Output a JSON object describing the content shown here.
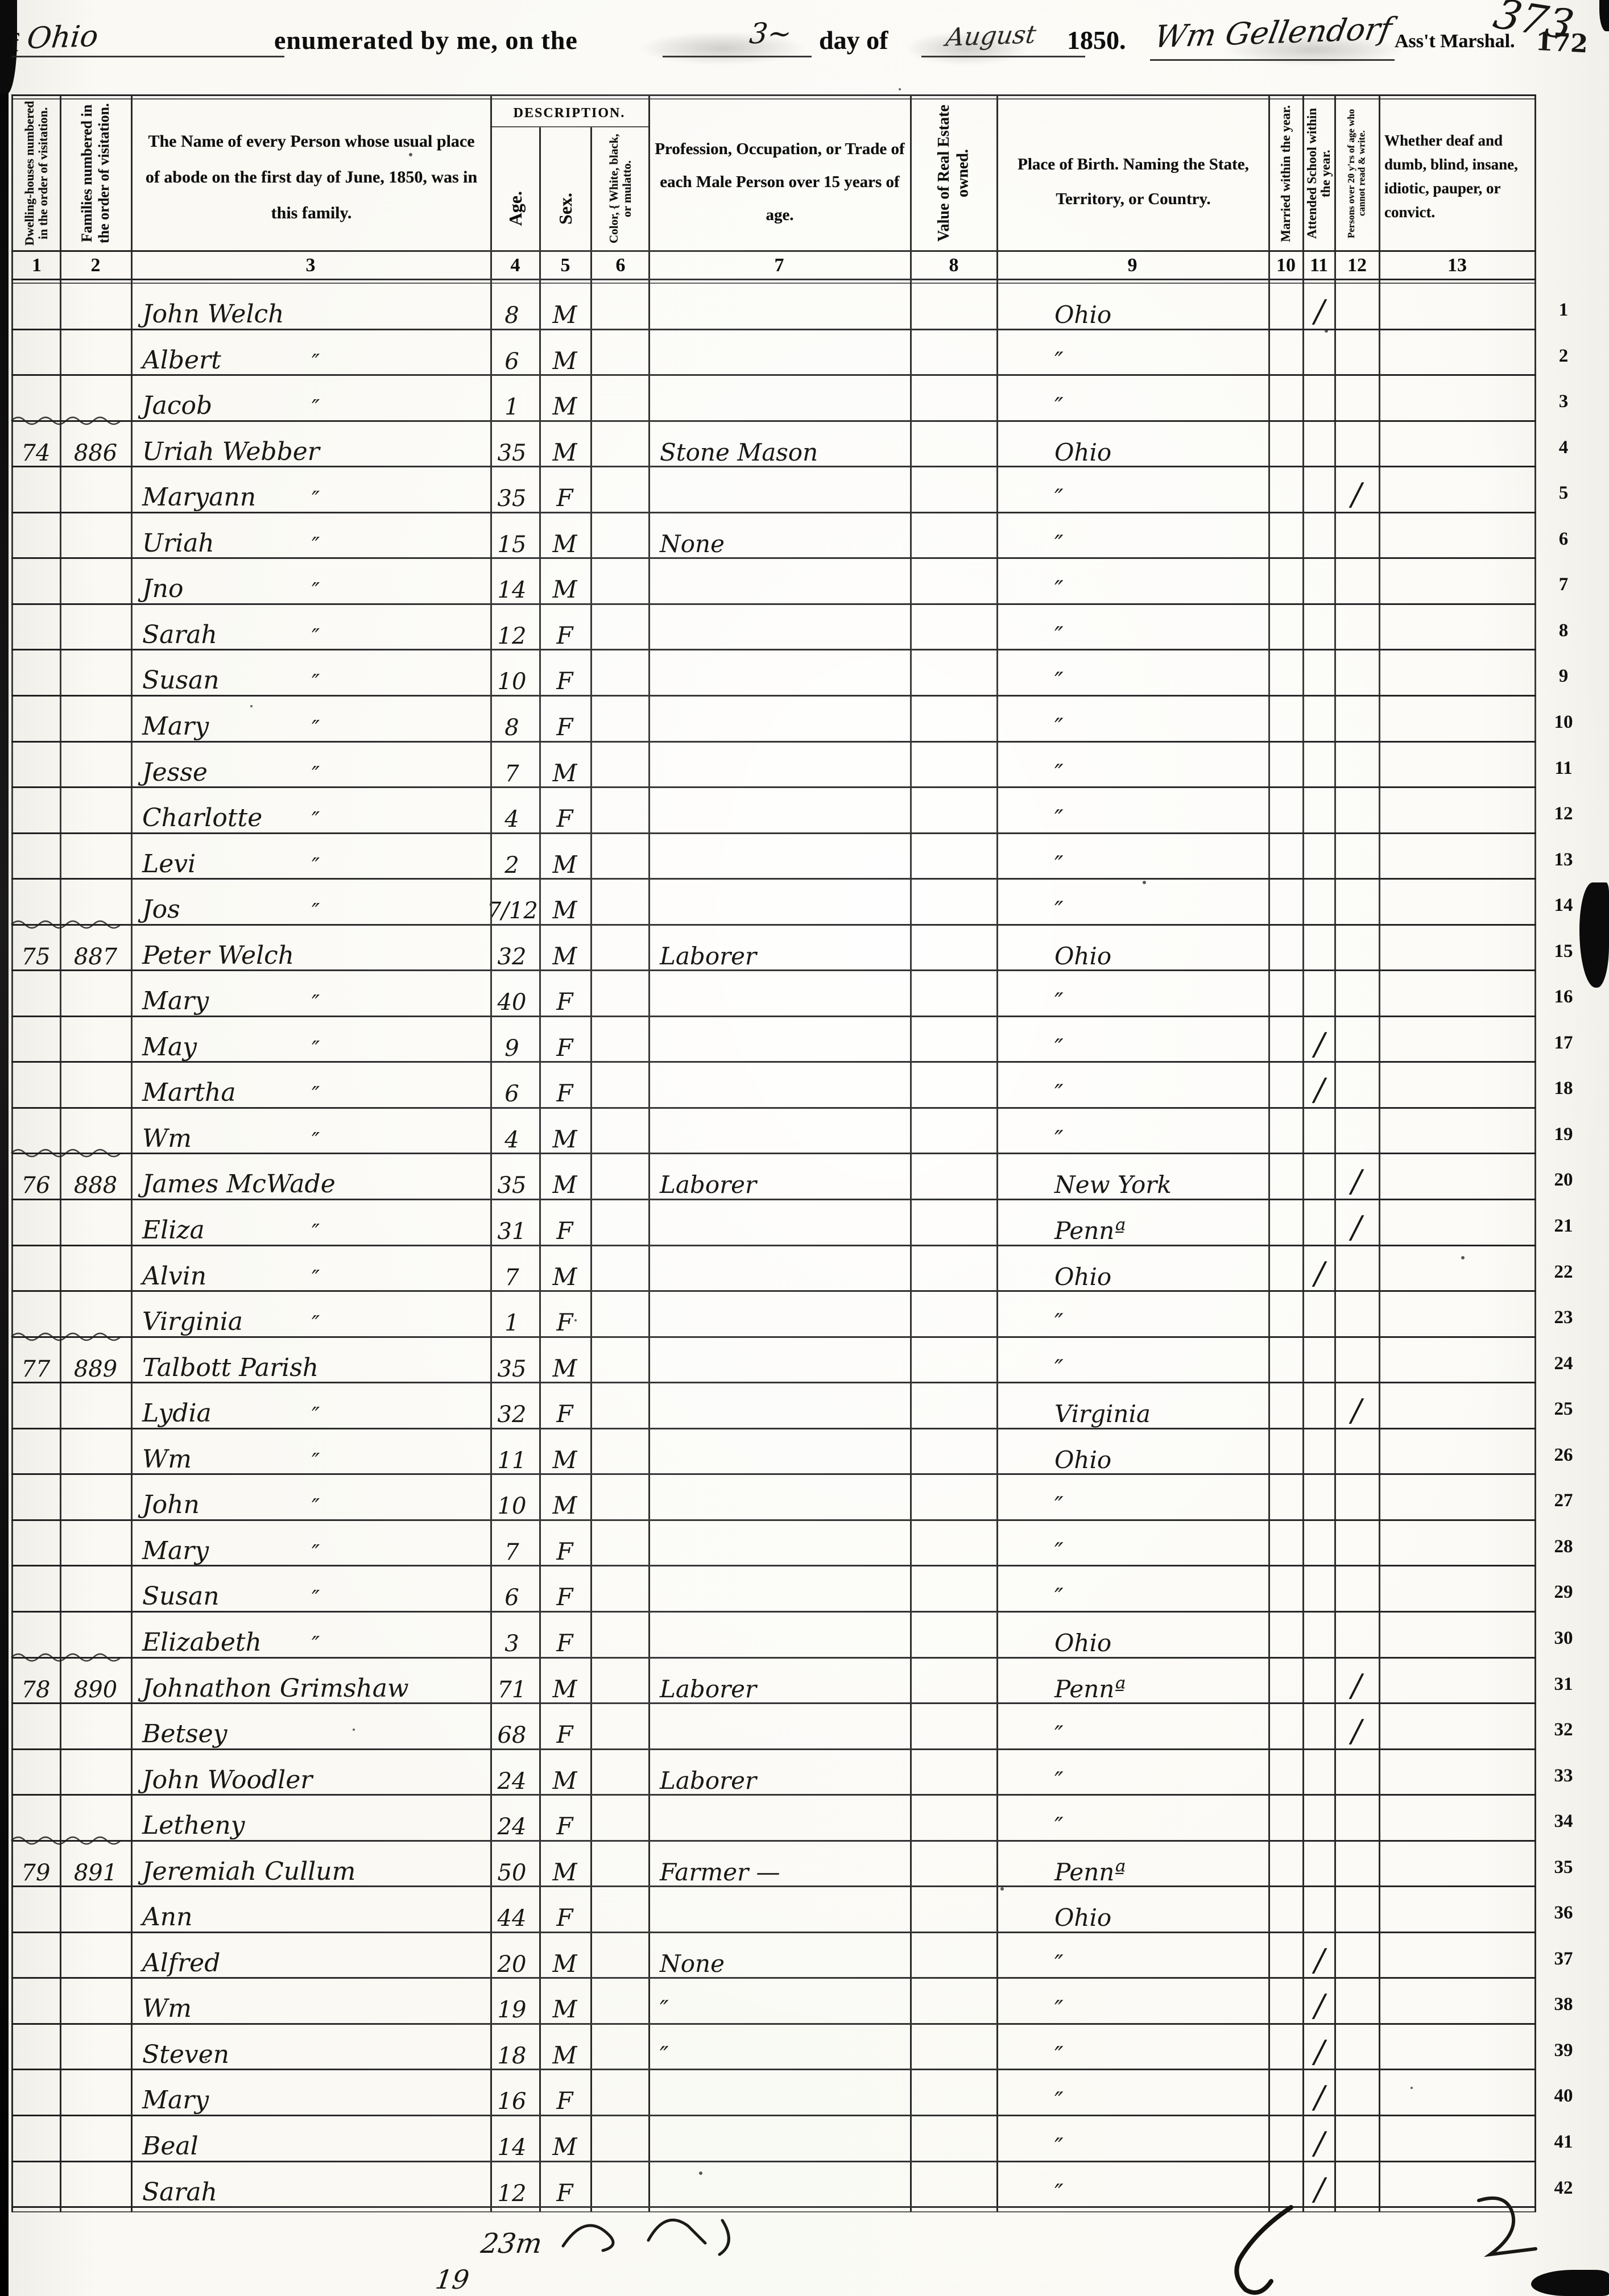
{
  "page": {
    "paper": "#faf9f4",
    "ink": "#191816",
    "line": "#2a2a2a"
  },
  "header": {
    "state_prefix": "f",
    "state_script": "Ohio",
    "enumerated_label": "enumerated by me, on the",
    "day_script": "3~",
    "day_of_label": "day of",
    "month_script": "August",
    "year_label": "1850.",
    "marshal_signature": "Wm Gellendorf",
    "marshal_title": "Ass't Marshal.",
    "corner_number_script": "373",
    "corner_number_stamp": "172"
  },
  "table": {
    "description_label": "DESCRIPTION.",
    "columns": [
      {
        "num": "1",
        "label": "Dwelling-houses numbered in the order of visitation."
      },
      {
        "num": "2",
        "label": "Families numbered in the order of visitation."
      },
      {
        "num": "3",
        "label": "The Name of every Person whose usual place of abode on the first day of June, 1850, was in this family."
      },
      {
        "num": "4",
        "label": "Age."
      },
      {
        "num": "5",
        "label": "Sex."
      },
      {
        "num": "6",
        "label": "Color, { White, black, or mulatto."
      },
      {
        "num": "7",
        "label": "Profession, Occupation, or Trade of each Male Person over 15 years of age."
      },
      {
        "num": "8",
        "label": "Value of Real Estate owned."
      },
      {
        "num": "9",
        "label": "Place of Birth. Naming the State, Territory, or Country."
      },
      {
        "num": "10",
        "label": "Married within the year."
      },
      {
        "num": "11",
        "label": "Attended School within the year."
      },
      {
        "num": "12",
        "label": "Persons over 20 y'rs of age who cannot read & write."
      },
      {
        "num": "13",
        "label": "Whether deaf and dumb, blind, insane, idiotic, pauper, or convict."
      }
    ],
    "rows": [
      {
        "n": "1",
        "dwelling": "",
        "family": "",
        "name": "John Welch",
        "ditto": "",
        "age": "8",
        "sex": "M",
        "occupation": "",
        "birthplace": "Ohio",
        "school_tick": "/",
        "read_tick": ""
      },
      {
        "n": "2",
        "dwelling": "",
        "family": "",
        "name": "Albert",
        "ditto": "″",
        "age": "6",
        "sex": "M",
        "occupation": "",
        "birthplace": "″",
        "school_tick": "",
        "read_tick": ""
      },
      {
        "n": "3",
        "dwelling": "",
        "family": "",
        "name": "Jacob",
        "ditto": "″",
        "age": "1",
        "sex": "M",
        "occupation": "",
        "birthplace": "″",
        "school_tick": "",
        "read_tick": ""
      },
      {
        "n": "4",
        "dwelling": "74",
        "family": "886",
        "name": "Uriah Webber",
        "ditto": "",
        "age": "35",
        "sex": "M",
        "occupation": "Stone Mason",
        "birthplace": "Ohio",
        "school_tick": "",
        "read_tick": ""
      },
      {
        "n": "5",
        "dwelling": "",
        "family": "",
        "name": "Maryann",
        "ditto": "″",
        "age": "35",
        "sex": "F",
        "occupation": "",
        "birthplace": "″",
        "school_tick": "",
        "read_tick": "/"
      },
      {
        "n": "6",
        "dwelling": "",
        "family": "",
        "name": "Uriah",
        "ditto": "″",
        "age": "15",
        "sex": "M",
        "occupation": "None",
        "birthplace": "″",
        "school_tick": "",
        "read_tick": ""
      },
      {
        "n": "7",
        "dwelling": "",
        "family": "",
        "name": "Jno",
        "ditto": "″",
        "age": "14",
        "sex": "M",
        "occupation": "",
        "birthplace": "″",
        "school_tick": "",
        "read_tick": ""
      },
      {
        "n": "8",
        "dwelling": "",
        "family": "",
        "name": "Sarah",
        "ditto": "″",
        "age": "12",
        "sex": "F",
        "occupation": "",
        "birthplace": "″",
        "school_tick": "",
        "read_tick": ""
      },
      {
        "n": "9",
        "dwelling": "",
        "family": "",
        "name": "Susan",
        "ditto": "″",
        "age": "10",
        "sex": "F",
        "occupation": "",
        "birthplace": "″",
        "school_tick": "",
        "read_tick": ""
      },
      {
        "n": "10",
        "dwelling": "",
        "family": "",
        "name": "Mary",
        "ditto": "″",
        "age": "8",
        "sex": "F",
        "occupation": "",
        "birthplace": "″",
        "school_tick": "",
        "read_tick": ""
      },
      {
        "n": "11",
        "dwelling": "",
        "family": "",
        "name": "Jesse",
        "ditto": "″",
        "age": "7",
        "sex": "M",
        "occupation": "",
        "birthplace": "″",
        "school_tick": "",
        "read_tick": ""
      },
      {
        "n": "12",
        "dwelling": "",
        "family": "",
        "name": "Charlotte",
        "ditto": "″",
        "age": "4",
        "sex": "F",
        "occupation": "",
        "birthplace": "″",
        "school_tick": "",
        "read_tick": ""
      },
      {
        "n": "13",
        "dwelling": "",
        "family": "",
        "name": "Levi",
        "ditto": "″",
        "age": "2",
        "sex": "M",
        "occupation": "",
        "birthplace": "″",
        "school_tick": "",
        "read_tick": ""
      },
      {
        "n": "14",
        "dwelling": "",
        "family": "",
        "name": "Jos",
        "ditto": "″",
        "age": "7/12",
        "sex": "M",
        "occupation": "",
        "birthplace": "″",
        "school_tick": "",
        "read_tick": ""
      },
      {
        "n": "15",
        "dwelling": "75",
        "family": "887",
        "name": "Peter Welch",
        "ditto": "",
        "age": "32",
        "sex": "M",
        "occupation": "Laborer",
        "birthplace": "Ohio",
        "school_tick": "",
        "read_tick": ""
      },
      {
        "n": "16",
        "dwelling": "",
        "family": "",
        "name": "Mary",
        "ditto": "″",
        "age": "40",
        "sex": "F",
        "occupation": "",
        "birthplace": "″",
        "school_tick": "",
        "read_tick": ""
      },
      {
        "n": "17",
        "dwelling": "",
        "family": "",
        "name": "May",
        "ditto": "″",
        "age": "9",
        "sex": "F",
        "occupation": "",
        "birthplace": "″",
        "school_tick": "/",
        "read_tick": ""
      },
      {
        "n": "18",
        "dwelling": "",
        "family": "",
        "name": "Martha",
        "ditto": "″",
        "age": "6",
        "sex": "F",
        "occupation": "",
        "birthplace": "″",
        "school_tick": "/",
        "read_tick": ""
      },
      {
        "n": "19",
        "dwelling": "",
        "family": "",
        "name": "Wm",
        "ditto": "″",
        "age": "4",
        "sex": "M",
        "occupation": "",
        "birthplace": "″",
        "school_tick": "",
        "read_tick": ""
      },
      {
        "n": "20",
        "dwelling": "76",
        "family": "888",
        "name": "James McWade",
        "ditto": "",
        "age": "35",
        "sex": "M",
        "occupation": "Laborer",
        "birthplace": "New York",
        "school_tick": "",
        "read_tick": "/"
      },
      {
        "n": "21",
        "dwelling": "",
        "family": "",
        "name": "Eliza",
        "ditto": "″",
        "age": "31",
        "sex": "F",
        "occupation": "",
        "birthplace": "Pennª",
        "school_tick": "",
        "read_tick": "/"
      },
      {
        "n": "22",
        "dwelling": "",
        "family": "",
        "name": "Alvin",
        "ditto": "″",
        "age": "7",
        "sex": "M",
        "occupation": "",
        "birthplace": "Ohio",
        "school_tick": "/",
        "read_tick": ""
      },
      {
        "n": "23",
        "dwelling": "",
        "family": "",
        "name": "Virginia",
        "ditto": "″",
        "age": "1",
        "sex": "F",
        "occupation": "",
        "birthplace": "″",
        "school_tick": "",
        "read_tick": ""
      },
      {
        "n": "24",
        "dwelling": "77",
        "family": "889",
        "name": "Talbott Parish",
        "ditto": "",
        "age": "35",
        "sex": "M",
        "occupation": "",
        "birthplace": "″",
        "school_tick": "",
        "read_tick": ""
      },
      {
        "n": "25",
        "dwelling": "",
        "family": "",
        "name": "Lydia",
        "ditto": "″",
        "age": "32",
        "sex": "F",
        "occupation": "",
        "birthplace": "Virginia",
        "school_tick": "",
        "read_tick": "/"
      },
      {
        "n": "26",
        "dwelling": "",
        "family": "",
        "name": "Wm",
        "ditto": "″",
        "age": "11",
        "sex": "M",
        "occupation": "",
        "birthplace": "Ohio",
        "school_tick": "",
        "read_tick": ""
      },
      {
        "n": "27",
        "dwelling": "",
        "family": "",
        "name": "John",
        "ditto": "″",
        "age": "10",
        "sex": "M",
        "occupation": "",
        "birthplace": "″",
        "school_tick": "",
        "read_tick": ""
      },
      {
        "n": "28",
        "dwelling": "",
        "family": "",
        "name": "Mary",
        "ditto": "″",
        "age": "7",
        "sex": "F",
        "occupation": "",
        "birthplace": "″",
        "school_tick": "",
        "read_tick": ""
      },
      {
        "n": "29",
        "dwelling": "",
        "family": "",
        "name": "Susan",
        "ditto": "″",
        "age": "6",
        "sex": "F",
        "occupation": "",
        "birthplace": "″",
        "school_tick": "",
        "read_tick": ""
      },
      {
        "n": "30",
        "dwelling": "",
        "family": "",
        "name": "Elizabeth",
        "ditto": "″",
        "age": "3",
        "sex": "F",
        "occupation": "",
        "birthplace": "Ohio",
        "school_tick": "",
        "read_tick": ""
      },
      {
        "n": "31",
        "dwelling": "78",
        "family": "890",
        "name": "Johnathon Grimshaw",
        "ditto": "",
        "age": "71",
        "sex": "M",
        "occupation": "Laborer",
        "birthplace": "Pennª",
        "school_tick": "",
        "read_tick": "/"
      },
      {
        "n": "32",
        "dwelling": "",
        "family": "",
        "name": "Betsey",
        "ditto": "",
        "age": "68",
        "sex": "F",
        "occupation": "",
        "birthplace": "″",
        "school_tick": "",
        "read_tick": "/"
      },
      {
        "n": "33",
        "dwelling": "",
        "family": "",
        "name": "John Woodler",
        "ditto": "",
        "age": "24",
        "sex": "M",
        "occupation": "Laborer",
        "birthplace": "″",
        "school_tick": "",
        "read_tick": ""
      },
      {
        "n": "34",
        "dwelling": "",
        "family": "",
        "name": "Letheny",
        "ditto": "",
        "age": "24",
        "sex": "F",
        "occupation": "",
        "birthplace": "″",
        "school_tick": "",
        "read_tick": ""
      },
      {
        "n": "35",
        "dwelling": "79",
        "family": "891",
        "name": "Jeremiah Cullum",
        "ditto": "",
        "age": "50",
        "sex": "M",
        "occupation": "Farmer —",
        "birthplace": "Pennª",
        "school_tick": "",
        "read_tick": ""
      },
      {
        "n": "36",
        "dwelling": "",
        "family": "",
        "name": "Ann",
        "ditto": "",
        "age": "44",
        "sex": "F",
        "occupation": "",
        "birthplace": "Ohio",
        "school_tick": "",
        "read_tick": ""
      },
      {
        "n": "37",
        "dwelling": "",
        "family": "",
        "name": "Alfred",
        "ditto": "",
        "age": "20",
        "sex": "M",
        "occupation": "None",
        "birthplace": "″",
        "school_tick": "/",
        "read_tick": ""
      },
      {
        "n": "38",
        "dwelling": "",
        "family": "",
        "name": "Wm",
        "ditto": "",
        "age": "19",
        "sex": "M",
        "occupation": "″",
        "birthplace": "″",
        "school_tick": "/",
        "read_tick": ""
      },
      {
        "n": "39",
        "dwelling": "",
        "family": "",
        "name": "Steven",
        "ditto": "",
        "age": "18",
        "sex": "M",
        "occupation": "″",
        "birthplace": "″",
        "school_tick": "/",
        "read_tick": ""
      },
      {
        "n": "40",
        "dwelling": "",
        "family": "",
        "name": "Mary",
        "ditto": "",
        "age": "16",
        "sex": "F",
        "occupation": "",
        "birthplace": "″",
        "school_tick": "/",
        "read_tick": ""
      },
      {
        "n": "41",
        "dwelling": "",
        "family": "",
        "name": "Beal",
        "ditto": "",
        "age": "14",
        "sex": "M",
        "occupation": "",
        "birthplace": "″",
        "school_tick": "/",
        "read_tick": ""
      },
      {
        "n": "42",
        "dwelling": "",
        "family": "",
        "name": "Sarah",
        "ditto": "",
        "age": "12",
        "sex": "F",
        "occupation": "",
        "birthplace": "″",
        "school_tick": "/",
        "read_tick": ""
      }
    ]
  },
  "footer": {
    "note_left": "23m",
    "note_left2": "19"
  }
}
